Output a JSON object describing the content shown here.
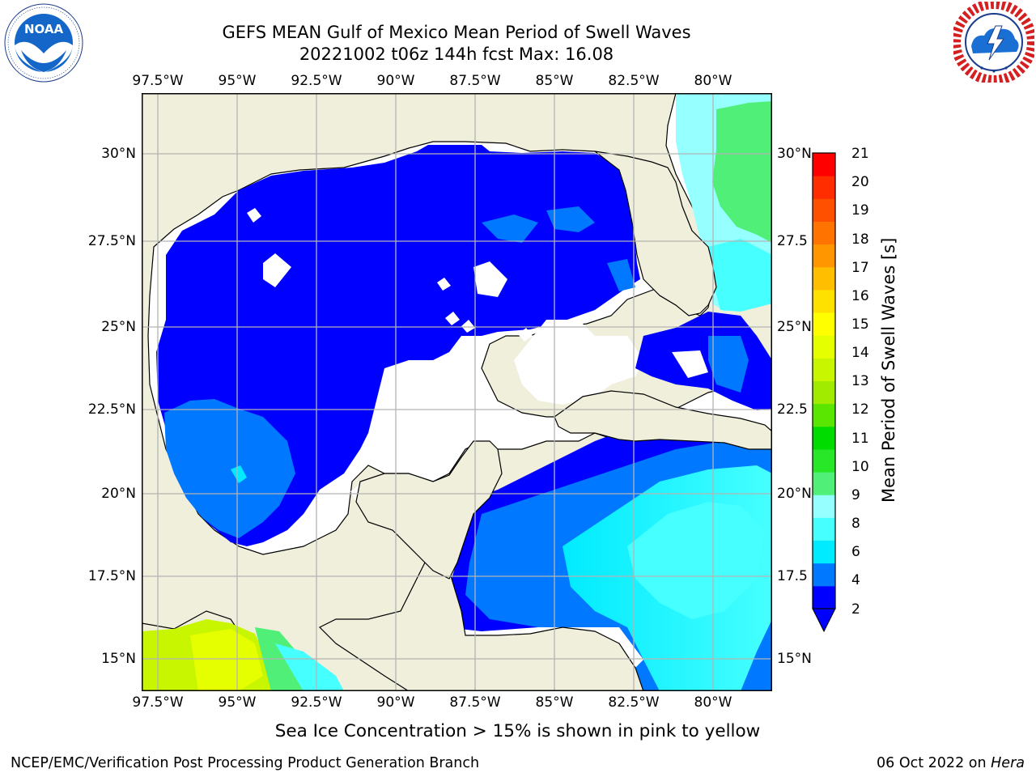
{
  "header": {
    "title_line1": "GEFS MEAN Gulf of Mexico Mean Period of Swell Waves",
    "title_line2": "20221002 t06z 144h fcst   Max: 16.08"
  },
  "logos": {
    "noaa": {
      "text": "NOAA",
      "icon": "noaa-seagull-logo"
    },
    "nws": {
      "icon": "national-weather-service-logo"
    }
  },
  "map": {
    "lon_ticks": [
      "97.5°W",
      "95°W",
      "92.5°W",
      "90°W",
      "87.5°W",
      "85°W",
      "82.5°W",
      "80°W"
    ],
    "lat_ticks_left": [
      "30°N",
      "27.5°N",
      "25°N",
      "22.5°N",
      "20°N",
      "17.5°N",
      "15°N"
    ],
    "lat_ticks_right": [
      "30°N",
      "27.5",
      "25°N",
      "22.5",
      "20°N",
      "17.5",
      "15°N"
    ],
    "lon_range": [
      -98,
      -78
    ],
    "lat_range": [
      14,
      32
    ],
    "land_color": "#efefdc",
    "ocean_mask_color": "#ffffff",
    "grid_color": "#b4b4b4"
  },
  "colorbar": {
    "title": "Mean Period of Swell Waves [s]",
    "labels": [
      "21",
      "20",
      "19",
      "18",
      "17",
      "16",
      "15",
      "14",
      "13",
      "12",
      "11",
      "10",
      "9",
      "8",
      "6",
      "4",
      "2"
    ],
    "colors": [
      "#0000ff",
      "#0078ff",
      "#00ebff",
      "#46ffff",
      "#96ffff",
      "#50f078",
      "#28e628",
      "#00dc00",
      "#5ae600",
      "#a0eb00",
      "#c8f500",
      "#e6ff00",
      "#ffff00",
      "#ffe100",
      "#ffbe00",
      "#ff9600",
      "#ff7300",
      "#ff5000",
      "#ff2d00",
      "#ff0000"
    ],
    "extend": "min"
  },
  "caption": "Sea Ice Concentration > 15% is shown in pink to yellow",
  "footer": {
    "left": "NCEP/EMC/Verification Post Processing Product Generation Branch",
    "date": "06 Oct 2022 on ",
    "host": "Hera"
  }
}
